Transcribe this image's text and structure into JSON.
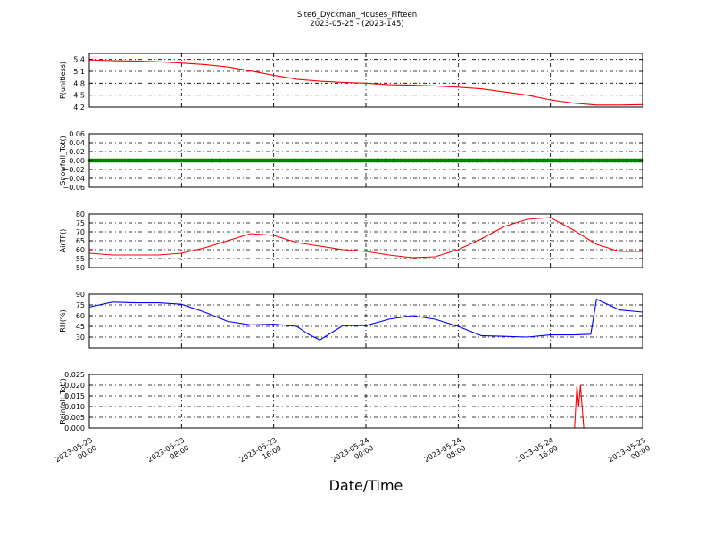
{
  "title": {
    "line1": "Site6_Dyckman_Houses_Fifteen",
    "line2": "2023-05-25 - (2023-145)"
  },
  "xlabel": "Date/Time",
  "chart_data": [
    {
      "type": "line",
      "ylabel": "P(unitless)",
      "ylim": [
        4.2,
        5.55
      ],
      "yticks": [
        "5.4",
        "5.1",
        "4.8",
        "4.5",
        "4.2"
      ],
      "color": "#ff0000",
      "grid": true,
      "x": [
        0,
        2,
        4,
        6,
        8,
        10,
        12,
        14,
        16,
        18,
        20,
        22,
        24,
        26,
        28,
        30,
        32,
        34,
        36,
        38,
        40,
        42,
        44,
        46,
        48
      ],
      "values": [
        5.39,
        5.37,
        5.36,
        5.34,
        5.31,
        5.27,
        5.21,
        5.11,
        5.0,
        4.9,
        4.85,
        4.82,
        4.8,
        4.76,
        4.75,
        4.73,
        4.7,
        4.66,
        4.58,
        4.5,
        4.38,
        4.3,
        4.25,
        4.25,
        4.26
      ]
    },
    {
      "type": "scatter",
      "ylabel": "Snowfall_Tot()",
      "ylim": [
        -0.06,
        0.06
      ],
      "yticks": [
        "0.06",
        "0.04",
        "0.02",
        "0.00",
        "−0.02",
        "−0.04",
        "−0.06"
      ],
      "color": "#008000",
      "grid": true,
      "x": [
        0,
        48
      ],
      "values": [
        0.0,
        0.0
      ]
    },
    {
      "type": "line",
      "ylabel": "AirTF()",
      "ylim": [
        50,
        80
      ],
      "yticks": [
        "80",
        "75",
        "70",
        "65",
        "60",
        "55",
        "50"
      ],
      "color": "#ff0000",
      "grid": true,
      "x": [
        0,
        2,
        4,
        6,
        8,
        10,
        12,
        14,
        16,
        18,
        20,
        22,
        24,
        26,
        28,
        30,
        32,
        34,
        36,
        38,
        40,
        42,
        44,
        46,
        48
      ],
      "values": [
        58,
        57,
        57,
        57,
        58,
        61,
        65,
        69,
        68,
        64,
        62,
        60,
        59,
        57,
        55.5,
        56,
        60,
        66,
        73,
        77,
        78,
        71,
        63,
        59,
        59
      ]
    },
    {
      "type": "line",
      "ylabel": "RH(%)",
      "ylim": [
        15,
        90
      ],
      "yticks": [
        "90",
        "75",
        "60",
        "45",
        "30"
      ],
      "color": "#0000ff",
      "grid": true,
      "x": [
        0,
        2,
        4,
        6,
        8,
        10,
        12,
        14,
        16,
        18,
        19,
        20,
        22,
        24,
        26,
        28,
        30,
        32,
        34,
        36,
        38,
        40,
        41,
        42,
        43.5,
        44,
        46,
        48
      ],
      "values": [
        72,
        79,
        78,
        78,
        76,
        65,
        52,
        47,
        48,
        45,
        34,
        26,
        46,
        46,
        55,
        60,
        55,
        45,
        32,
        31,
        30,
        33,
        33,
        33,
        34,
        83,
        68,
        65
      ]
    },
    {
      "type": "line",
      "ylabel": "Rainfall_Tot()",
      "ylim": [
        0,
        0.025
      ],
      "yticks": [
        "0.025",
        "0.020",
        "0.015",
        "0.010",
        "0.005",
        "0.000"
      ],
      "color": "#ff0000",
      "grid": true,
      "x": [
        0,
        42.1,
        42.3,
        42.45,
        42.6,
        42.9,
        48
      ],
      "values": [
        0,
        0,
        0.02,
        0.01,
        0.02,
        0,
        0
      ]
    }
  ],
  "xticks": [
    {
      "date": "2023-05-23",
      "time": "00:00",
      "pos": 0
    },
    {
      "date": "2023-05-23",
      "time": "08:00",
      "pos": 8
    },
    {
      "date": "2023-05-23",
      "time": "16:00",
      "pos": 16
    },
    {
      "date": "2023-05-24",
      "time": "00:00",
      "pos": 24
    },
    {
      "date": "2023-05-24",
      "time": "08:00",
      "pos": 32
    },
    {
      "date": "2023-05-24",
      "time": "16:00",
      "pos": 40
    },
    {
      "date": "2023-05-25",
      "time": "00:00",
      "pos": 48
    }
  ]
}
